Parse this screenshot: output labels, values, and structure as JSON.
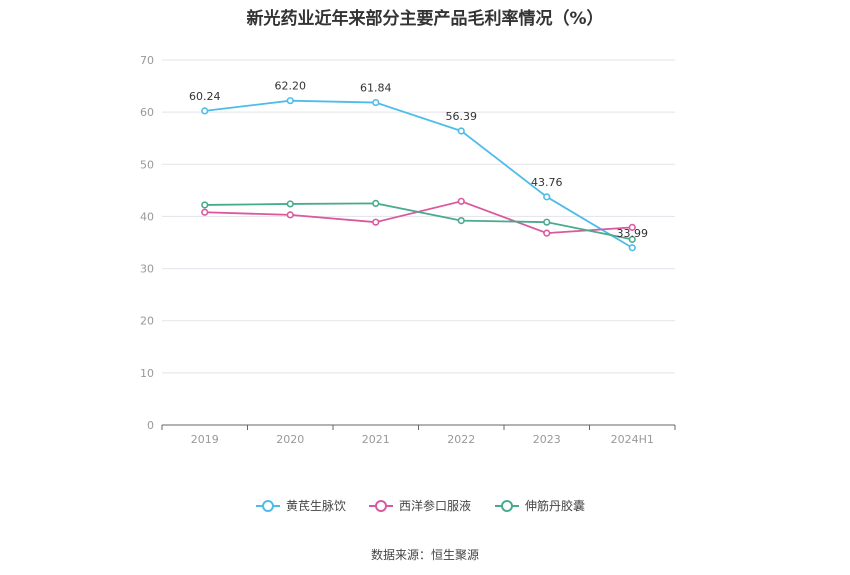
{
  "chart_data": {
    "type": "line",
    "title": "新光药业近年来部分主要产品毛利率情况（%）",
    "categories": [
      "2019",
      "2020",
      "2021",
      "2022",
      "2023",
      "2024H1"
    ],
    "ylim": [
      0,
      70
    ],
    "yticks": [
      0,
      10,
      20,
      30,
      40,
      50,
      60,
      70
    ],
    "grid": true,
    "legend_position": "bottom",
    "series": [
      {
        "name": "黄芪生脉饮",
        "color": "#4dbce9",
        "values": [
          60.24,
          62.2,
          61.84,
          56.39,
          43.76,
          33.99
        ],
        "labels": [
          "60.24",
          "62.20",
          "61.84",
          "56.39",
          "43.76",
          "33.99"
        ]
      },
      {
        "name": "西洋参口服液",
        "color": "#d9589e",
        "values": [
          40.8,
          40.3,
          38.9,
          42.9,
          36.8,
          37.9
        ]
      },
      {
        "name": "伸筋丹胶囊",
        "color": "#4aaa8e",
        "values": [
          42.2,
          42.4,
          42.5,
          39.2,
          38.9,
          35.6
        ]
      }
    ]
  },
  "source": "数据来源：恒生聚源"
}
